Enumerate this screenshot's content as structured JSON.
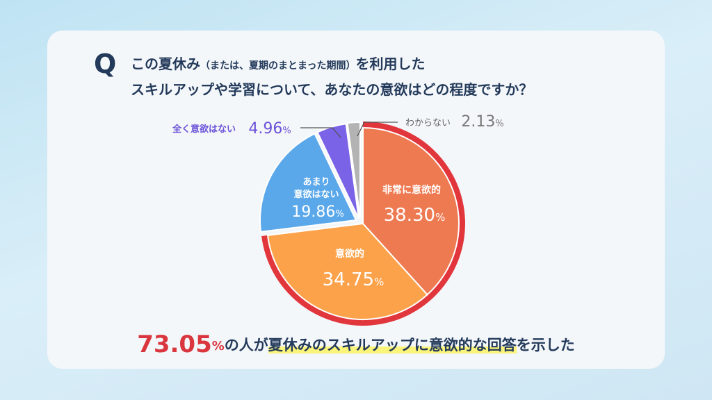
{
  "question": {
    "mark": "Q",
    "line1_a": "この夏休み",
    "line1_paren": "（または、夏期のまとまった期間）",
    "line1_b": "を利用した",
    "line2": "スキルアップや学習について、あなたの意欲はどの程度ですか？"
  },
  "chart_data": {
    "type": "pie",
    "unit": "%",
    "slices": [
      {
        "label": "非常に意欲的",
        "value": 38.3,
        "value_text": "38.30",
        "color": "#ee7a52"
      },
      {
        "label": "意欲的",
        "value": 34.75,
        "value_text": "34.75",
        "color": "#fca24a"
      },
      {
        "label": "あまり意欲はない",
        "value": 19.86,
        "value_text": "19.86",
        "color": "#5aa8ea"
      },
      {
        "label": "全く意欲はない",
        "value": 4.96,
        "value_text": "4.96",
        "color": "#7a63e6"
      },
      {
        "label": "わからない",
        "value": 2.13,
        "value_text": "2.13",
        "color": "#b3b3b3"
      }
    ],
    "highlight_ring_color": "#e1363c"
  },
  "footer": {
    "pct": "73.05",
    "unit": "%",
    "text_a": "の人が",
    "text_hl": "夏休みのスキルアップに意欲的な回答",
    "text_b": "を示した"
  }
}
